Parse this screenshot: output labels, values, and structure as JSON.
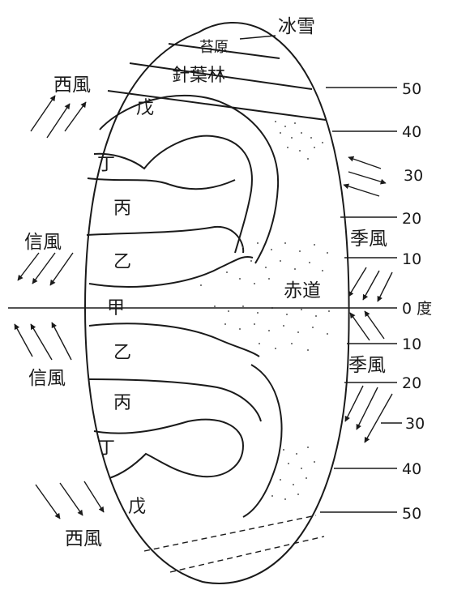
{
  "diagram": {
    "zones": {
      "ice_snow": "冰雪",
      "tundra": "苔原",
      "coniferous": "針葉林",
      "north": {
        "wu": "戊",
        "ding": "丁",
        "bing": "丙",
        "yi": "乙"
      },
      "jia": "甲",
      "south": {
        "yi": "乙",
        "bing": "丙",
        "ding": "丁",
        "wu": "戊"
      },
      "equator": "赤道"
    },
    "winds": {
      "westerly_north": "西風",
      "trade_north": "信風",
      "trade_south": "信風",
      "westerly_south": "西風",
      "monsoon_north": "季風",
      "monsoon_south": "季風"
    },
    "latitudes": {
      "n50": "50",
      "n40": "40",
      "n30": "30",
      "n20": "20",
      "n10": "10",
      "zero": "0 度",
      "s10": "10",
      "s20": "20",
      "s30": "30",
      "s40": "40",
      "s50": "50"
    },
    "colors": {
      "ink": "#1a1a1a",
      "background": "#ffffff"
    }
  }
}
